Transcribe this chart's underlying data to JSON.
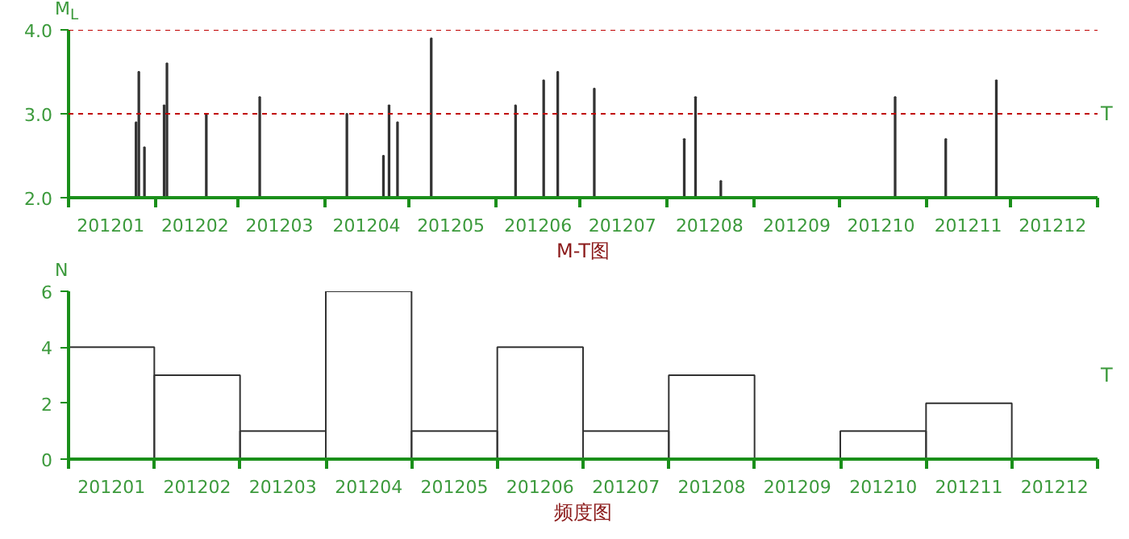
{
  "chart_data": [
    {
      "type": "bar",
      "title": "M-T图",
      "xlabel": "T",
      "ylabel": "M$_{L}$",
      "color": "#333333",
      "x": [
        "2012-01-25",
        "2012-01-26",
        "2012-01-28",
        "2012-02-04",
        "2012-02-05",
        "2012-02-19",
        "2012-03-09",
        "2012-04-09",
        "2012-04-22",
        "2012-04-24",
        "2012-04-27",
        "2012-05-09",
        "2012-06-08",
        "2012-06-18",
        "2012-06-23",
        "2012-07-06",
        "2012-08-07",
        "2012-08-11",
        "2012-08-20",
        "2012-10-21",
        "2012-11-08",
        "2012-11-26"
      ],
      "values": [
        2.9,
        3.5,
        2.6,
        3.1,
        3.6,
        3.0,
        3.2,
        3.0,
        2.5,
        3.1,
        2.9,
        3.9,
        3.1,
        3.4,
        3.5,
        3.3,
        2.7,
        3.2,
        2.2,
        3.2,
        2.7,
        3.4
      ],
      "xlim": [
        "2012-01-01",
        "2013-01-01"
      ],
      "xticks": [
        {
          "value": "2012-01-01",
          "label": null
        },
        {
          "value": "2012-02-01",
          "label": null
        },
        {
          "value": "2012-03-01",
          "label": null
        },
        {
          "value": "2012-04-01",
          "label": null
        },
        {
          "value": "2012-05-01",
          "label": null
        },
        {
          "value": "2012-06-01",
          "label": null
        },
        {
          "value": "2012-07-01",
          "label": null
        },
        {
          "value": "2012-08-01",
          "label": null
        },
        {
          "value": "2012-09-01",
          "label": null
        },
        {
          "value": "2012-10-01",
          "label": null
        },
        {
          "value": "2012-11-01",
          "label": null
        },
        {
          "value": "2012-12-01",
          "label": null
        },
        {
          "value": "2013-01-01",
          "label": null
        },
        {
          "value": "2012-01-16",
          "label": "201201"
        },
        {
          "value": "2012-02-15",
          "label": "201202"
        },
        {
          "value": "2012-03-16",
          "label": "201203"
        },
        {
          "value": "2012-04-16",
          "label": "201204"
        },
        {
          "value": "2012-05-16",
          "label": "201205"
        },
        {
          "value": "2012-06-16",
          "label": "201206"
        },
        {
          "value": "2012-07-16",
          "label": "201207"
        },
        {
          "value": "2012-08-16",
          "label": "201208"
        },
        {
          "value": "2012-09-16",
          "label": "201209"
        },
        {
          "value": "2012-10-16",
          "label": "201210"
        },
        {
          "value": "2012-11-16",
          "label": "201211"
        },
        {
          "value": "2012-12-16",
          "label": "201212"
        }
      ],
      "ylim": [
        2,
        4
      ],
      "yticks": [
        {
          "value": 2,
          "label": "2.0"
        },
        {
          "value": 3,
          "label": "3.0"
        },
        {
          "value": 4,
          "label": "4.0"
        }
      ],
      "ref_lines": [
        {
          "axis": "y",
          "value": 3,
          "color": "#c00000",
          "line_style": "dashed"
        },
        {
          "axis": "y",
          "value": 4,
          "color": "#c00000",
          "line_style": "dashed"
        }
      ]
    },
    {
      "type": "bar",
      "title": "频度图",
      "xlabel": "T",
      "ylabel": "N",
      "color": "#333333",
      "categories": [
        "201201",
        "201202",
        "201203",
        "201204",
        "201205",
        "201206",
        "201207",
        "201208",
        "201209",
        "201210",
        "201211",
        "201212"
      ],
      "values": [
        4,
        3,
        1,
        6,
        1,
        4,
        1,
        3,
        0,
        1,
        2,
        0
      ],
      "ylim": [
        0,
        6
      ],
      "yticks": [
        0,
        2,
        4,
        6
      ]
    }
  ]
}
